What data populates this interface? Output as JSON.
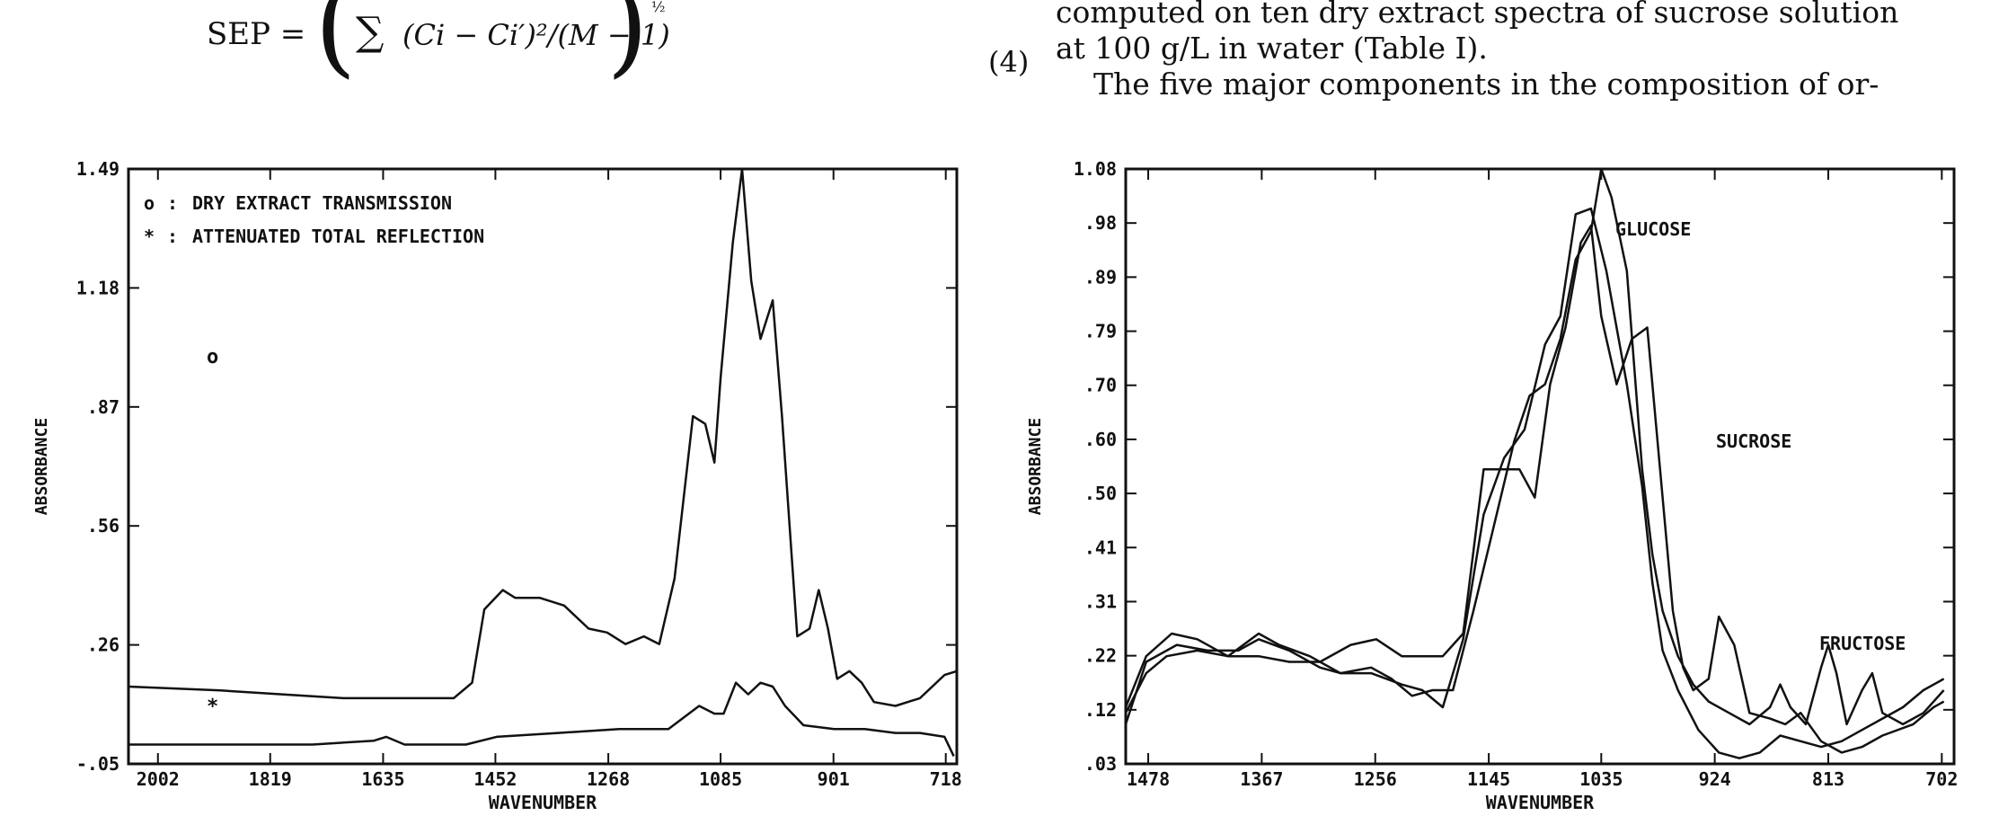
{
  "equation": {
    "lhs": "SEP =",
    "sigma": "∑",
    "body": "(Ci − Ci′)²/(M − 1)",
    "exponent": "½",
    "number": "(4)"
  },
  "text": {
    "line0": "computed on ten dry extract spectra of sucrose solution",
    "line1": "at 100 g/L in water (Table I).",
    "line2": "The five major components in the composition of or-"
  },
  "chart_data": [
    {
      "type": "line",
      "title": "",
      "xlabel": "WAVENUMBER",
      "ylabel": "ABSORBANCE",
      "x_reversed": true,
      "xlim": [
        2050,
        700
      ],
      "ylim": [
        -0.05,
        1.49
      ],
      "xticks": [
        "2002",
        "1819",
        "1635",
        "1452",
        "1268",
        "1085",
        "901",
        "718"
      ],
      "yticks": [
        "1.49",
        "1.18",
        ".87",
        ".56",
        ".26",
        "-.05"
      ],
      "legend": [
        {
          "marker": "o",
          "text": "DRY EXTRACT TRANSMISSION"
        },
        {
          "marker": "*",
          "text": "ATTENUATED TOTAL REFLECTION"
        }
      ],
      "series": [
        {
          "name": "DRY EXTRACT TRANSMISSION",
          "marker": "o",
          "points": [
            [
              2050,
              0.15
            ],
            [
              1900,
              0.14
            ],
            [
              1800,
              0.13
            ],
            [
              1700,
              0.12
            ],
            [
              1600,
              0.12
            ],
            [
              1520,
              0.12
            ],
            [
              1490,
              0.16
            ],
            [
              1470,
              0.35
            ],
            [
              1440,
              0.4
            ],
            [
              1420,
              0.38
            ],
            [
              1380,
              0.38
            ],
            [
              1340,
              0.36
            ],
            [
              1300,
              0.3
            ],
            [
              1270,
              0.29
            ],
            [
              1240,
              0.26
            ],
            [
              1210,
              0.28
            ],
            [
              1185,
              0.26
            ],
            [
              1160,
              0.43
            ],
            [
              1130,
              0.85
            ],
            [
              1110,
              0.83
            ],
            [
              1095,
              0.73
            ],
            [
              1085,
              0.95
            ],
            [
              1065,
              1.3
            ],
            [
              1050,
              1.49
            ],
            [
              1035,
              1.2
            ],
            [
              1020,
              1.05
            ],
            [
              1000,
              1.15
            ],
            [
              985,
              0.85
            ],
            [
              960,
              0.28
            ],
            [
              940,
              0.3
            ],
            [
              925,
              0.4
            ],
            [
              910,
              0.3
            ],
            [
              895,
              0.17
            ],
            [
              875,
              0.19
            ],
            [
              855,
              0.16
            ],
            [
              835,
              0.11
            ],
            [
              800,
              0.1
            ],
            [
              760,
              0.12
            ],
            [
              720,
              0.18
            ],
            [
              700,
              0.19
            ]
          ]
        },
        {
          "name": "ATTENUATED TOTAL REFLECTION",
          "marker": "*",
          "points": [
            [
              2050,
              0.0
            ],
            [
              1900,
              0.0
            ],
            [
              1750,
              0.0
            ],
            [
              1650,
              0.01
            ],
            [
              1630,
              0.02
            ],
            [
              1600,
              0.0
            ],
            [
              1500,
              0.0
            ],
            [
              1450,
              0.02
            ],
            [
              1350,
              0.03
            ],
            [
              1250,
              0.04
            ],
            [
              1170,
              0.04
            ],
            [
              1120,
              0.1
            ],
            [
              1095,
              0.08
            ],
            [
              1080,
              0.08
            ],
            [
              1060,
              0.16
            ],
            [
              1040,
              0.13
            ],
            [
              1020,
              0.16
            ],
            [
              1000,
              0.15
            ],
            [
              980,
              0.1
            ],
            [
              950,
              0.05
            ],
            [
              900,
              0.04
            ],
            [
              850,
              0.04
            ],
            [
              800,
              0.03
            ],
            [
              760,
              0.03
            ],
            [
              720,
              0.02
            ],
            [
              705,
              -0.03
            ]
          ]
        }
      ]
    },
    {
      "type": "line",
      "title": "",
      "xlabel": "WAVENUMBER",
      "ylabel": "ABSORBANCE",
      "x_reversed": true,
      "xlim": [
        1500,
        690
      ],
      "ylim": [
        0.03,
        1.08
      ],
      "xticks": [
        "1478",
        "1367",
        "1256",
        "1145",
        "1035",
        "924",
        "813",
        "702"
      ],
      "yticks": [
        "1.08",
        ".98",
        ".89",
        ".79",
        ".70",
        ".60",
        ".50",
        ".41",
        ".31",
        ".22",
        ".12",
        ".03"
      ],
      "series": [
        {
          "name": "GLUCOSE",
          "points": [
            [
              1500,
              0.1
            ],
            [
              1480,
              0.21
            ],
            [
              1450,
              0.24
            ],
            [
              1420,
              0.23
            ],
            [
              1390,
              0.23
            ],
            [
              1370,
              0.25
            ],
            [
              1340,
              0.23
            ],
            [
              1310,
              0.2
            ],
            [
              1290,
              0.19
            ],
            [
              1260,
              0.19
            ],
            [
              1230,
              0.17
            ],
            [
              1210,
              0.16
            ],
            [
              1190,
              0.13
            ],
            [
              1170,
              0.25
            ],
            [
              1150,
              0.47
            ],
            [
              1130,
              0.57
            ],
            [
              1110,
              0.62
            ],
            [
              1090,
              0.77
            ],
            [
              1075,
              0.82
            ],
            [
              1060,
              1.0
            ],
            [
              1045,
              1.01
            ],
            [
              1030,
              0.9
            ],
            [
              1010,
              0.7
            ],
            [
              995,
              0.52
            ],
            [
              985,
              0.35
            ],
            [
              975,
              0.23
            ],
            [
              960,
              0.16
            ],
            [
              940,
              0.09
            ],
            [
              920,
              0.05
            ],
            [
              900,
              0.04
            ],
            [
              880,
              0.05
            ],
            [
              860,
              0.08
            ],
            [
              840,
              0.07
            ],
            [
              820,
              0.06
            ],
            [
              800,
              0.07
            ],
            [
              780,
              0.09
            ],
            [
              760,
              0.11
            ],
            [
              740,
              0.13
            ],
            [
              720,
              0.16
            ],
            [
              700,
              0.18
            ]
          ]
        },
        {
          "name": "SUCROSE",
          "points": [
            [
              1500,
              0.13
            ],
            [
              1480,
              0.22
            ],
            [
              1455,
              0.26
            ],
            [
              1430,
              0.25
            ],
            [
              1400,
              0.22
            ],
            [
              1370,
              0.22
            ],
            [
              1340,
              0.21
            ],
            [
              1310,
              0.21
            ],
            [
              1280,
              0.24
            ],
            [
              1255,
              0.25
            ],
            [
              1230,
              0.22
            ],
            [
              1210,
              0.22
            ],
            [
              1190,
              0.22
            ],
            [
              1170,
              0.26
            ],
            [
              1150,
              0.55
            ],
            [
              1130,
              0.55
            ],
            [
              1115,
              0.55
            ],
            [
              1100,
              0.5
            ],
            [
              1085,
              0.7
            ],
            [
              1070,
              0.8
            ],
            [
              1055,
              0.95
            ],
            [
              1045,
              0.98
            ],
            [
              1035,
              0.82
            ],
            [
              1020,
              0.7
            ],
            [
              1005,
              0.78
            ],
            [
              990,
              0.8
            ],
            [
              980,
              0.6
            ],
            [
              965,
              0.3
            ],
            [
              955,
              0.2
            ],
            [
              945,
              0.16
            ],
            [
              930,
              0.18
            ],
            [
              920,
              0.29
            ],
            [
              905,
              0.24
            ],
            [
              890,
              0.12
            ],
            [
              870,
              0.11
            ],
            [
              855,
              0.1
            ],
            [
              840,
              0.12
            ],
            [
              820,
              0.07
            ],
            [
              800,
              0.05
            ],
            [
              780,
              0.06
            ],
            [
              760,
              0.08
            ],
            [
              730,
              0.1
            ],
            [
              710,
              0.13
            ],
            [
              700,
              0.14
            ]
          ]
        },
        {
          "name": "FRUCTOSE",
          "points": [
            [
              1500,
              0.12
            ],
            [
              1480,
              0.19
            ],
            [
              1460,
              0.22
            ],
            [
              1430,
              0.23
            ],
            [
              1400,
              0.22
            ],
            [
              1370,
              0.26
            ],
            [
              1350,
              0.24
            ],
            [
              1320,
              0.22
            ],
            [
              1290,
              0.19
            ],
            [
              1260,
              0.2
            ],
            [
              1240,
              0.18
            ],
            [
              1220,
              0.15
            ],
            [
              1200,
              0.16
            ],
            [
              1180,
              0.16
            ],
            [
              1160,
              0.3
            ],
            [
              1140,
              0.45
            ],
            [
              1120,
              0.6
            ],
            [
              1105,
              0.68
            ],
            [
              1090,
              0.7
            ],
            [
              1075,
              0.78
            ],
            [
              1060,
              0.92
            ],
            [
              1045,
              0.97
            ],
            [
              1035,
              1.08
            ],
            [
              1025,
              1.03
            ],
            [
              1010,
              0.9
            ],
            [
              995,
              0.55
            ],
            [
              985,
              0.4
            ],
            [
              975,
              0.3
            ],
            [
              960,
              0.22
            ],
            [
              945,
              0.17
            ],
            [
              930,
              0.14
            ],
            [
              910,
              0.12
            ],
            [
              890,
              0.1
            ],
            [
              870,
              0.13
            ],
            [
              860,
              0.17
            ],
            [
              850,
              0.13
            ],
            [
              835,
              0.1
            ],
            [
              820,
              0.2
            ],
            [
              813,
              0.24
            ],
            [
              805,
              0.19
            ],
            [
              795,
              0.1
            ],
            [
              780,
              0.16
            ],
            [
              770,
              0.19
            ],
            [
              760,
              0.12
            ],
            [
              740,
              0.1
            ],
            [
              720,
              0.12
            ],
            [
              700,
              0.16
            ]
          ]
        }
      ],
      "annotations": [
        "GLUCOSE",
        "SUCROSE",
        "FRUCTOSE"
      ]
    }
  ]
}
